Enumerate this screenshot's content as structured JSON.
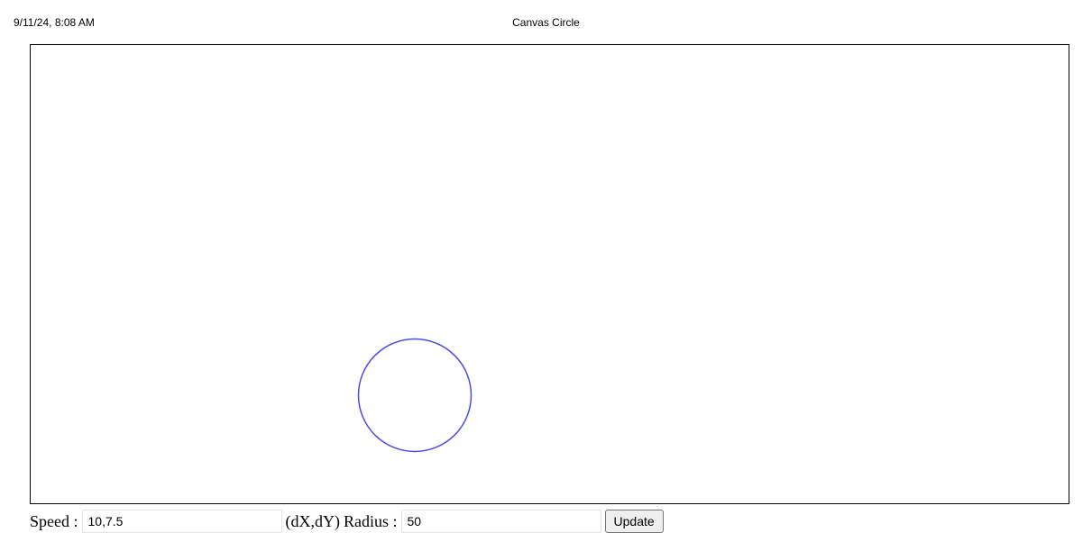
{
  "print_header": {
    "date": "9/11/24, 8:08 AM",
    "title": "Canvas Circle"
  },
  "canvas": {
    "circle": {
      "stroke_color": "#4a4af0",
      "fill": "none"
    }
  },
  "controls": {
    "speed_label": "Speed :",
    "speed_value": "10,7.5",
    "speed_unit_label": "(dX,dY)",
    "radius_label": "Radius :",
    "radius_value": "50",
    "update_label": "Update"
  }
}
